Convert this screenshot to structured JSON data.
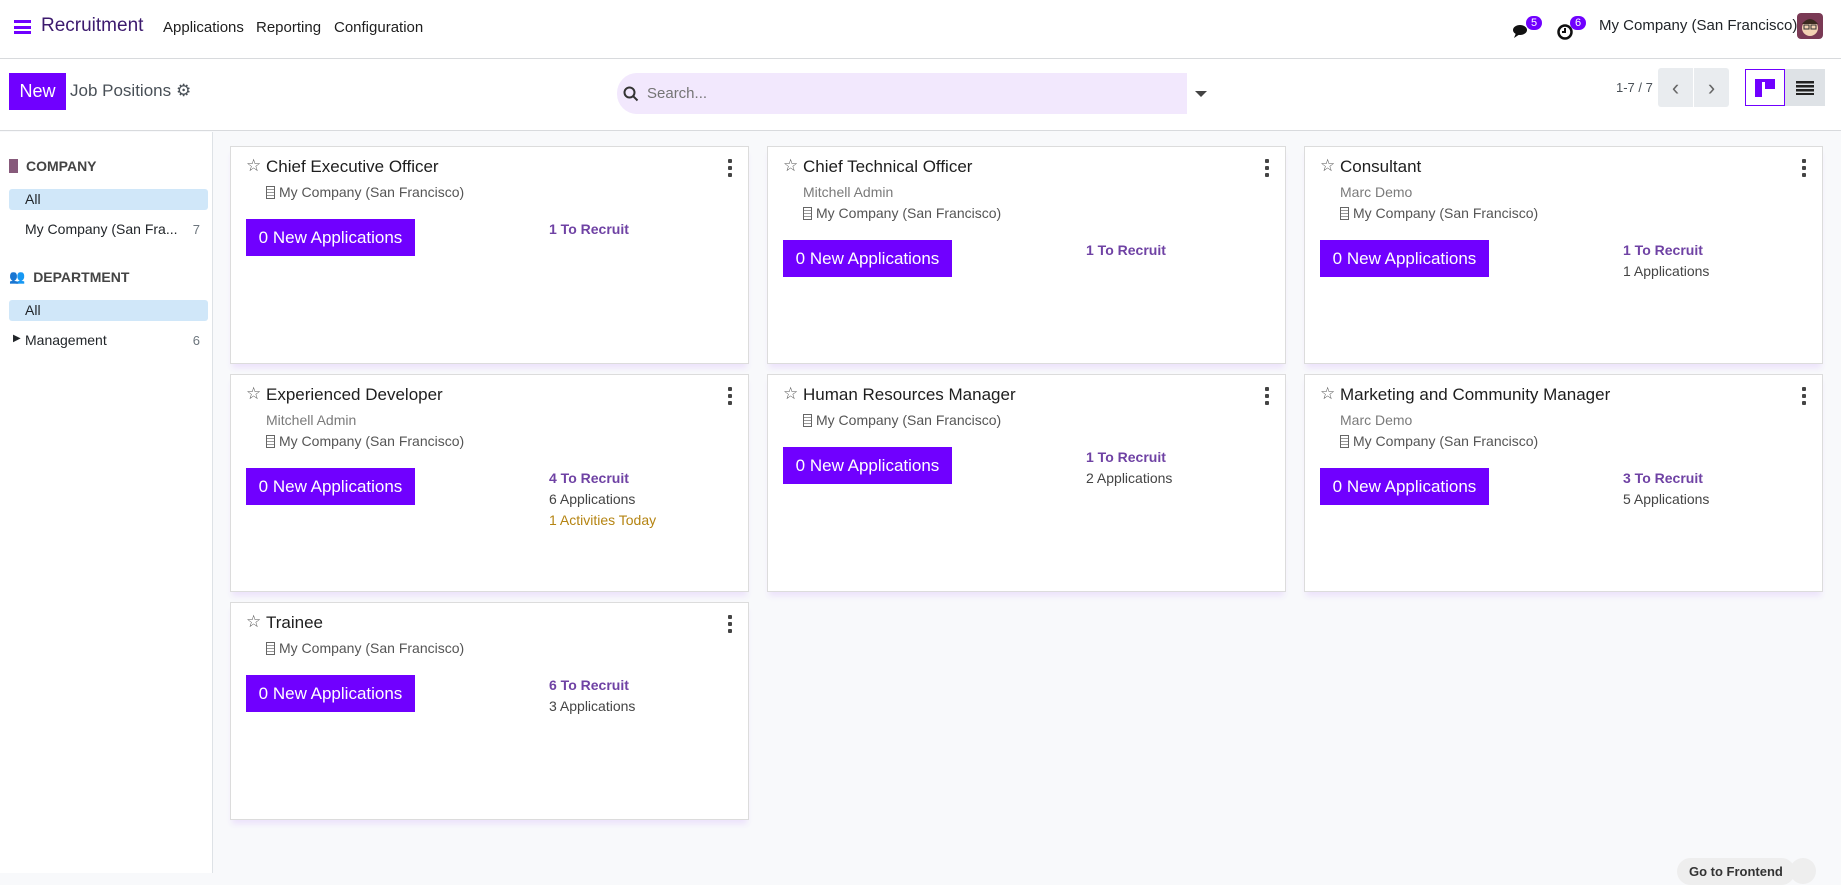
{
  "nav": {
    "app": "Recruitment",
    "menus": [
      "Applications",
      "Reporting",
      "Configuration"
    ],
    "messages_count": "5",
    "activities_count": "6",
    "company": "My Company (San Francisco)"
  },
  "control": {
    "new_label": "New",
    "breadcrumb": "Job Positions",
    "search_placeholder": "Search...",
    "pager": "1-7 / 7",
    "active_view": "kanban"
  },
  "sidebar": {
    "company": {
      "title": "COMPANY",
      "items": [
        {
          "label": "All",
          "active": true
        },
        {
          "label": "My Company (San Fra...",
          "count": "7"
        }
      ]
    },
    "department": {
      "title": "DEPARTMENT",
      "items": [
        {
          "label": "All",
          "active": true
        },
        {
          "label": "Management",
          "count": "6"
        }
      ]
    }
  },
  "jobs": [
    {
      "title": "Chief Executive Officer",
      "company": "My Company (San Francisco)",
      "new_apps": "0 New Applications",
      "to_recruit": "1 To Recruit"
    },
    {
      "title": "Chief Technical Officer",
      "user": "Mitchell Admin",
      "company": "My Company (San Francisco)",
      "new_apps": "0 New Applications",
      "to_recruit": "1 To Recruit"
    },
    {
      "title": "Consultant",
      "user": "Marc Demo",
      "company": "My Company (San Francisco)",
      "new_apps": "0 New Applications",
      "to_recruit": "1 To Recruit",
      "applications": "1 Applications"
    },
    {
      "title": "Experienced Developer",
      "user": "Mitchell Admin",
      "company": "My Company (San Francisco)",
      "new_apps": "0 New Applications",
      "to_recruit": "4 To Recruit",
      "applications": "6 Applications",
      "activities": "1 Activities Today"
    },
    {
      "title": "Human Resources Manager",
      "company": "My Company (San Francisco)",
      "new_apps": "0 New Applications",
      "to_recruit": "1 To Recruit",
      "applications": "2 Applications"
    },
    {
      "title": "Marketing and Community Manager",
      "user": "Marc Demo",
      "company": "My Company (San Francisco)",
      "new_apps": "0 New Applications",
      "to_recruit": "3 To Recruit",
      "applications": "5 Applications"
    },
    {
      "title": "Trainee",
      "company": "My Company (San Francisco)",
      "new_apps": "0 New Applications",
      "to_recruit": "6 To Recruit",
      "applications": "3 Applications"
    }
  ],
  "footer": {
    "frontend_label": "Go to Frontend"
  },
  "colors": {
    "accent": "#7000ff",
    "to_recruit": "#6f42a4",
    "activities": "#b58412"
  }
}
